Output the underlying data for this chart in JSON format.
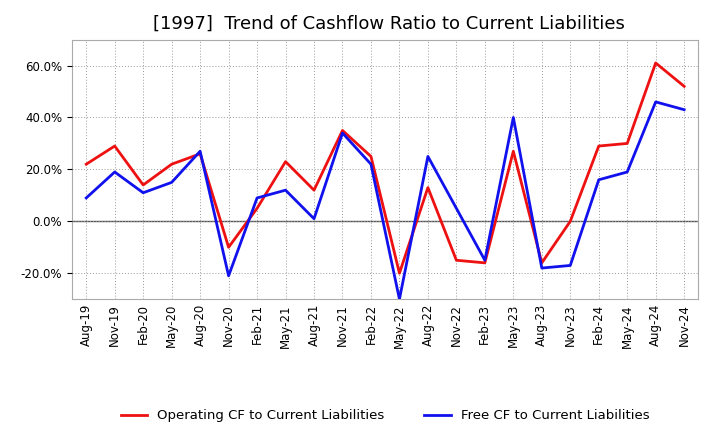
{
  "title": "[1997]  Trend of Cashflow Ratio to Current Liabilities",
  "x_labels": [
    "Aug-19",
    "Nov-19",
    "Feb-20",
    "May-20",
    "Aug-20",
    "Nov-20",
    "Feb-21",
    "May-21",
    "Aug-21",
    "Nov-21",
    "Feb-22",
    "May-22",
    "Aug-22",
    "Nov-22",
    "Feb-23",
    "May-23",
    "Aug-23",
    "Nov-23",
    "Feb-24",
    "May-24",
    "Aug-24",
    "Nov-24"
  ],
  "operating_cf": [
    0.22,
    0.29,
    0.14,
    0.22,
    0.26,
    -0.1,
    0.05,
    0.23,
    0.12,
    0.35,
    0.25,
    -0.2,
    0.13,
    -0.15,
    -0.16,
    0.27,
    -0.16,
    0.0,
    0.29,
    0.3,
    0.61,
    0.52
  ],
  "free_cf": [
    0.09,
    0.19,
    0.11,
    0.15,
    0.27,
    -0.21,
    0.09,
    0.12,
    0.01,
    0.34,
    0.22,
    -0.3,
    0.25,
    0.05,
    -0.15,
    0.4,
    -0.18,
    -0.17,
    0.16,
    0.19,
    0.46,
    0.43
  ],
  "operating_cf_color": "#ee1111",
  "free_cf_color": "#1111ee",
  "ylim": [
    -0.3,
    0.7
  ],
  "yticks": [
    -0.2,
    0.0,
    0.2,
    0.4,
    0.6
  ],
  "background_color": "#ffffff",
  "grid_color": "#999999",
  "zero_line_color": "#555555",
  "legend_op_label": "Operating CF to Current Liabilities",
  "legend_free_label": "Free CF to Current Liabilities",
  "title_fontsize": 13,
  "tick_fontsize": 8.5,
  "legend_fontsize": 9.5,
  "linewidth": 2.0
}
